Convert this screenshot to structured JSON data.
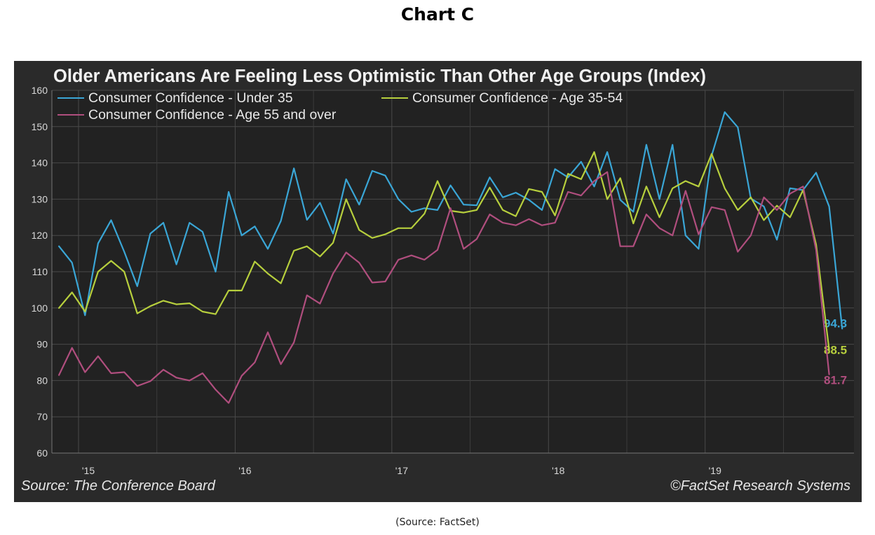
{
  "page": {
    "heading": "Chart C",
    "caption": "(Source:  FactSet)"
  },
  "chart_data": {
    "type": "line",
    "title": "Older Americans Are Feeling Less Optimistic Than Other Age Groups (Index)",
    "xlabel": "",
    "ylabel": "",
    "ylim": [
      60,
      160
    ],
    "yticks": [
      60,
      70,
      80,
      90,
      100,
      110,
      120,
      130,
      140,
      150,
      160
    ],
    "xlim": [
      2014.83,
      2019.95
    ],
    "xticks": [
      {
        "label": "'15",
        "value": 2015.0
      },
      {
        "label": "'16",
        "value": 2016.0
      },
      {
        "label": "'17",
        "value": 2017.0
      },
      {
        "label": "'18",
        "value": 2018.0
      },
      {
        "label": "'19",
        "value": 2019.0
      }
    ],
    "grid": true,
    "legend_position": "top-left",
    "x_start": 2014.875,
    "x_step": 0.083333,
    "series": [
      {
        "name": "Consumer Confidence - Under 35",
        "color": "#3aa6d6",
        "end_label": "94.3",
        "values": [
          117.0,
          112.5,
          98.0,
          117.8,
          124.2,
          115.5,
          106.0,
          120.5,
          123.5,
          112.0,
          123.5,
          121.0,
          110.0,
          132.0,
          120.0,
          122.5,
          116.3,
          124.0,
          138.5,
          124.3,
          129.0,
          120.5,
          135.5,
          128.5,
          137.8,
          136.5,
          130.0,
          126.5,
          127.5,
          127.0,
          133.8,
          128.5,
          128.3,
          136.0,
          130.5,
          131.8,
          129.8,
          127.0,
          138.3,
          136.0,
          140.3,
          133.5,
          143.0,
          129.8,
          126.5,
          145.0,
          130.0,
          145.0,
          120.0,
          116.3,
          142.0,
          154.0,
          149.8,
          130.2,
          128.0,
          118.8,
          133.0,
          132.5,
          137.3,
          128.0,
          94.3
        ]
      },
      {
        "name": "Consumer Confidence - Age 35-54",
        "color": "#b7cf3d",
        "end_label": "88.5",
        "values": [
          100.0,
          104.3,
          99.0,
          110.0,
          113.0,
          110.0,
          98.5,
          100.5,
          102.0,
          101.0,
          101.3,
          99.0,
          98.3,
          104.8,
          104.8,
          112.8,
          109.5,
          106.8,
          115.8,
          117.0,
          114.2,
          118.0,
          130.0,
          121.5,
          119.3,
          120.3,
          122.0,
          122.0,
          126.0,
          135.0,
          126.8,
          126.3,
          127.0,
          133.2,
          127.0,
          125.3,
          132.8,
          132.0,
          125.5,
          137.0,
          135.5,
          143.0,
          130.0,
          135.8,
          123.3,
          133.5,
          125.0,
          133.0,
          135.0,
          133.5,
          142.5,
          133.0,
          127.0,
          130.5,
          124.2,
          128.2,
          125.0,
          132.5,
          117.5,
          88.5
        ]
      },
      {
        "name": "Consumer Confidence - Age 55 and over",
        "color": "#b04e7e",
        "end_label": "81.7",
        "values": [
          81.5,
          89.0,
          82.3,
          86.7,
          82.0,
          82.3,
          78.5,
          79.8,
          83.0,
          80.8,
          80.0,
          82.0,
          77.5,
          73.8,
          81.3,
          85.0,
          93.3,
          84.5,
          90.5,
          103.5,
          101.2,
          109.5,
          115.3,
          112.5,
          107.0,
          107.3,
          113.3,
          114.5,
          113.3,
          116.0,
          127.5,
          116.3,
          119.0,
          125.8,
          123.5,
          122.8,
          124.5,
          122.8,
          123.5,
          132.0,
          131.0,
          135.0,
          137.5,
          117.0,
          117.0,
          125.8,
          122.0,
          120.0,
          132.3,
          120.3,
          127.8,
          127.0,
          115.5,
          120.0,
          130.5,
          127.0,
          131.5,
          133.5,
          116.0,
          81.7
        ]
      }
    ],
    "source_left": "Source: The Conference Board",
    "source_right": "©FactSet Research Systems"
  }
}
